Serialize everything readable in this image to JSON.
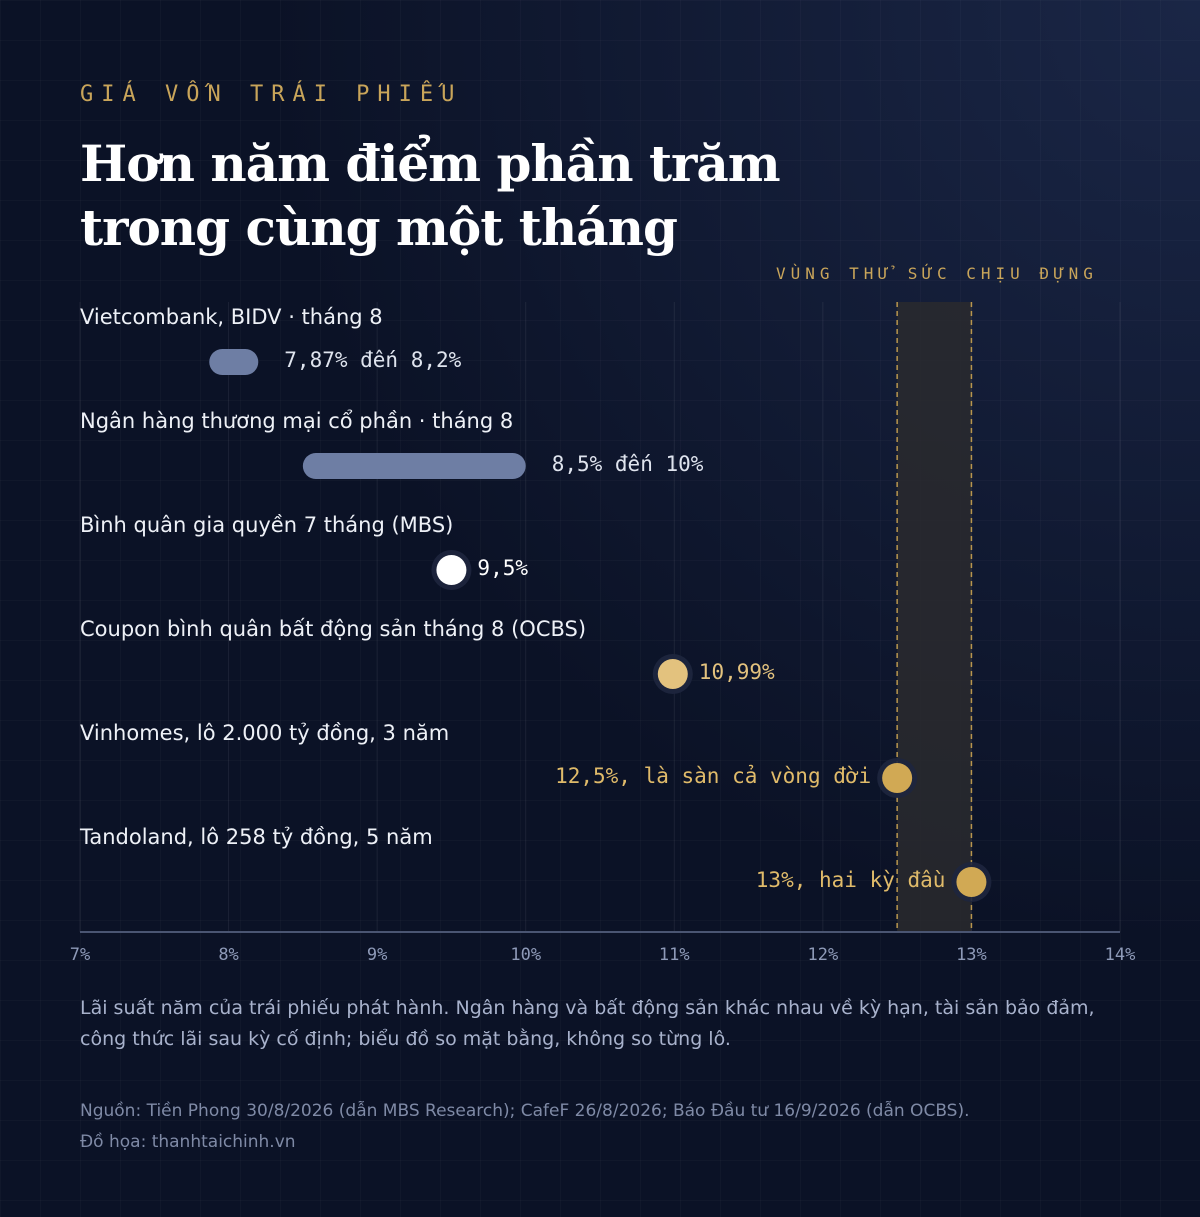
{
  "kicker": "GIÁ VỐN TRÁI PHIẾU",
  "title_lines": [
    "Hơn năm điểm phần trăm",
    "trong cùng một tháng"
  ],
  "band_label": "VÙNG THỬ SỨC CHỊU ĐỰNG",
  "note": "Lãi suất năm của trái phiếu phát hành. Ngân hàng và bất động sản khác nhau về kỳ hạn, tài sản bảo đảm, công thức lãi sau kỳ cố định; biểu đồ so mặt bằng, không so từng lô.",
  "source_lines": [
    "Nguồn: Tiền Phong 30/8/2026 (dẫn MBS Research); CafeF 26/8/2026; Báo Đầu tư 16/9/2026 (dẫn OCBS).",
    "Đồ họa: thanhtaichinh.vn"
  ],
  "colors": {
    "range": "#6e7ea4",
    "white_dot": "#ffffff",
    "light_gold": "#e3c27e",
    "gold": "#d1a954",
    "gold_text": "#e0bb6a",
    "band": "#2a2a2e"
  },
  "chart_data": {
    "type": "dot-range",
    "x_unit": "%",
    "xlim": [
      7,
      14
    ],
    "x_ticks": [
      7,
      8,
      9,
      10,
      11,
      12,
      13,
      14
    ],
    "x_tick_labels": [
      "7%",
      "8%",
      "9%",
      "10%",
      "11%",
      "12%",
      "13%",
      "14%"
    ],
    "grid": true,
    "band": {
      "from": 12.5,
      "to": 13,
      "label": "VÙNG THỬ SỨC CHỊU ĐỰNG"
    },
    "rows": [
      {
        "label": "Vietcombank, BIDV · tháng 8",
        "kind": "range",
        "low": 7.87,
        "high": 8.2,
        "value_label": "7,87% đến 8,2%",
        "color": "range"
      },
      {
        "label": "Ngân hàng thương mại cổ phần · tháng 8",
        "kind": "range",
        "low": 8.5,
        "high": 10,
        "value_label": "8,5% đến 10%",
        "color": "range"
      },
      {
        "label": "Bình quân gia quyền 7 tháng (MBS)",
        "kind": "point",
        "value": 9.5,
        "value_label": "9,5%",
        "color": "white_dot"
      },
      {
        "label": "Coupon bình quân bất động sản tháng 8 (OCBS)",
        "kind": "point",
        "value": 10.99,
        "value_label": "10,99%",
        "color": "light_gold"
      },
      {
        "label": "Vinhomes, lô 2.000 tỷ đồng, 3 năm",
        "kind": "point",
        "value": 12.5,
        "value_label": "12,5%, là sàn cả vòng đời",
        "color": "gold",
        "label_side": "left"
      },
      {
        "label": "Tandoland, lô 258 tỷ đồng, 5 năm",
        "kind": "point",
        "value": 13,
        "value_label": "13%, hai kỳ đầu",
        "color": "gold",
        "label_side": "left"
      }
    ]
  }
}
